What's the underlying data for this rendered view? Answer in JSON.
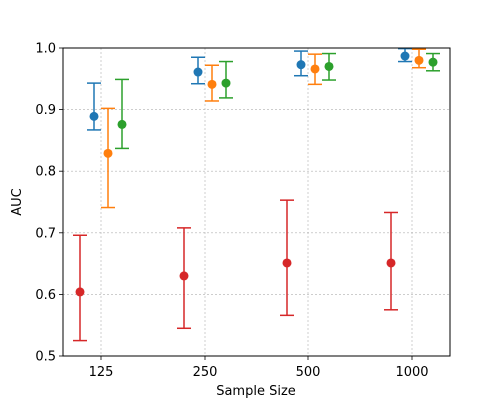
{
  "chart_data": {
    "type": "scatter",
    "title": "",
    "xlabel": "Sample Size",
    "ylabel": "AUC",
    "categories": [
      "125",
      "250",
      "500",
      "1000"
    ],
    "ylim": [
      0.5,
      1.0
    ],
    "yticks": [
      "0.5",
      "0.6",
      "0.7",
      "0.8",
      "0.9",
      "1.0"
    ],
    "grid": true,
    "legend": "none",
    "series": [
      {
        "color": "#1f77b4",
        "values": [
          0.889,
          0.961,
          0.973,
          0.987
        ],
        "lower": [
          0.867,
          0.942,
          0.955,
          0.978
        ],
        "upper": [
          0.943,
          0.985,
          0.995,
          0.999
        ]
      },
      {
        "color": "#ff7f0e",
        "values": [
          0.829,
          0.941,
          0.966,
          0.98
        ],
        "lower": [
          0.741,
          0.914,
          0.941,
          0.968
        ],
        "upper": [
          0.902,
          0.972,
          0.99,
          0.998
        ]
      },
      {
        "color": "#2ca02c",
        "values": [
          0.876,
          0.943,
          0.97,
          0.977
        ],
        "lower": [
          0.837,
          0.919,
          0.948,
          0.963
        ],
        "upper": [
          0.949,
          0.978,
          0.991,
          0.991
        ]
      },
      {
        "color": "#d62728",
        "values": [
          0.604,
          0.63,
          0.651,
          0.651
        ],
        "lower": [
          0.525,
          0.545,
          0.566,
          0.575
        ],
        "upper": [
          0.696,
          0.708,
          0.753,
          0.733
        ]
      }
    ]
  }
}
